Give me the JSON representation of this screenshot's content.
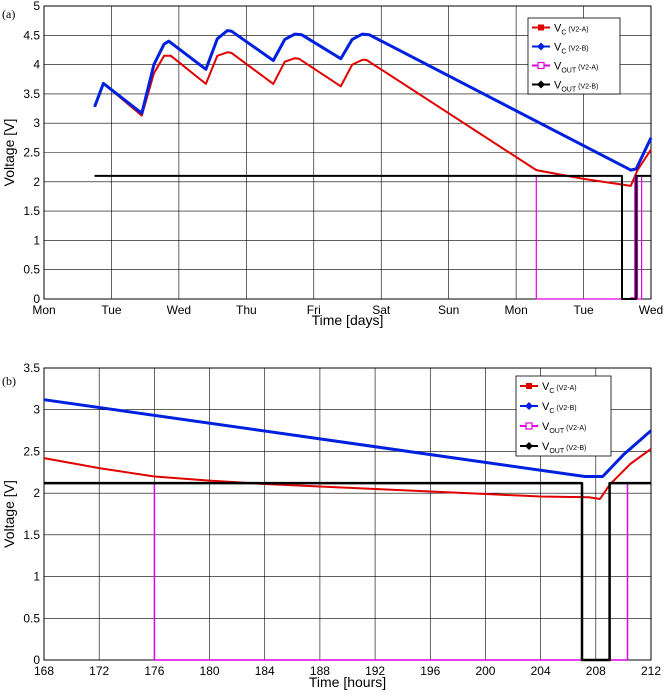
{
  "chart_data": [
    {
      "type": "line",
      "panel_label": "(a)",
      "xlabel": "Time [days]",
      "ylabel": "Voltage [V]",
      "xlim": [
        0,
        9
      ],
      "ylim": [
        0,
        5
      ],
      "x_ticks": [
        0,
        1,
        2,
        3,
        4,
        5,
        6,
        7,
        8,
        9
      ],
      "x_tick_labels": [
        "Mon",
        "Tue",
        "Wed",
        "Thu",
        "Fri",
        "Sat",
        "Sun",
        "Mon",
        "Tue",
        "Wed"
      ],
      "y_ticks": [
        0,
        0.5,
        1,
        1.5,
        2,
        2.5,
        3,
        3.5,
        4,
        4.5,
        5
      ],
      "y_tick_labels": [
        "0",
        "0.5",
        "1",
        "1.5",
        "2",
        "2.5",
        "3",
        "3.5",
        "4",
        "4.5",
        "5"
      ],
      "grid": true,
      "legend_position": "top-right",
      "legend": [
        {
          "main": "V",
          "sub": "C",
          "tag": "(V2-A)",
          "color": "#e00000",
          "marker": "square"
        },
        {
          "main": "V",
          "sub": "C",
          "tag": "(V2-B)",
          "color": "#0020e0",
          "marker": "diamond"
        },
        {
          "main": "V",
          "sub": "OUT",
          "tag": "(V2-A)",
          "color": "#e000e0",
          "marker": "open-square"
        },
        {
          "main": "V",
          "sub": "OUT",
          "tag": "(V2-B)",
          "color": "#000000",
          "marker": "diamond"
        }
      ],
      "series": [
        {
          "name": "VC (V2-A)",
          "color": "#e00000",
          "width": 2,
          "points": [
            [
              0.75,
              3.28
            ],
            [
              0.88,
              3.68
            ],
            [
              1.45,
              3.13
            ],
            [
              1.63,
              3.85
            ],
            [
              1.78,
              4.15
            ],
            [
              1.88,
              4.15
            ],
            [
              2.4,
              3.67
            ],
            [
              2.57,
              4.15
            ],
            [
              2.72,
              4.21
            ],
            [
              2.78,
              4.2
            ],
            [
              3.4,
              3.67
            ],
            [
              3.57,
              4.05
            ],
            [
              3.72,
              4.11
            ],
            [
              3.78,
              4.1
            ],
            [
              4.4,
              3.63
            ],
            [
              4.57,
              4.0
            ],
            [
              4.72,
              4.08
            ],
            [
              4.78,
              4.08
            ],
            [
              7.3,
              2.2
            ],
            [
              8.0,
              2.05
            ],
            [
              8.7,
              1.93
            ],
            [
              8.8,
              2.2
            ],
            [
              9.0,
              2.55
            ]
          ]
        },
        {
          "name": "VC (V2-B)",
          "color": "#0020e0",
          "width": 3,
          "points": [
            [
              0.75,
              3.28
            ],
            [
              0.88,
              3.68
            ],
            [
              1.45,
              3.17
            ],
            [
              1.63,
              4.0
            ],
            [
              1.78,
              4.35
            ],
            [
              1.85,
              4.4
            ],
            [
              2.4,
              3.92
            ],
            [
              2.57,
              4.44
            ],
            [
              2.72,
              4.58
            ],
            [
              2.78,
              4.57
            ],
            [
              3.4,
              4.07
            ],
            [
              3.57,
              4.43
            ],
            [
              3.72,
              4.52
            ],
            [
              3.82,
              4.51
            ],
            [
              4.4,
              4.1
            ],
            [
              4.57,
              4.43
            ],
            [
              4.72,
              4.52
            ],
            [
              4.82,
              4.51
            ],
            [
              8.7,
              2.2
            ],
            [
              8.78,
              2.22
            ],
            [
              9.0,
              2.75
            ]
          ]
        },
        {
          "name": "VOUT (V2-A)",
          "color": "#e000e0",
          "width": 1.2,
          "points": [
            [
              0.75,
              2.1
            ],
            [
              7.3,
              2.1
            ],
            [
              7.3,
              0
            ],
            [
              8.7,
              0
            ],
            [
              8.7,
              0.02
            ],
            [
              8.76,
              0.02
            ],
            [
              8.76,
              2.1
            ],
            [
              8.8,
              2.1
            ],
            [
              8.8,
              0
            ],
            [
              8.86,
              0
            ],
            [
              8.86,
              2.1
            ],
            [
              9.0,
              2.1
            ]
          ]
        },
        {
          "name": "VOUT (V2-B)",
          "color": "#000000",
          "width": 2,
          "points": [
            [
              0.75,
              2.1
            ],
            [
              8.57,
              2.1
            ],
            [
              8.57,
              0
            ],
            [
              8.78,
              0
            ],
            [
              8.78,
              2.1
            ],
            [
              9.0,
              2.1
            ]
          ]
        }
      ]
    },
    {
      "type": "line",
      "panel_label": "(b)",
      "xlabel": "Time [hours]",
      "ylabel": "Voltage [V]",
      "xlim": [
        168,
        212
      ],
      "ylim": [
        0,
        3.5
      ],
      "x_ticks": [
        168,
        172,
        176,
        180,
        184,
        188,
        192,
        196,
        200,
        204,
        208,
        212
      ],
      "x_tick_labels": [
        "168",
        "172",
        "176",
        "180",
        "184",
        "188",
        "192",
        "196",
        "200",
        "204",
        "208",
        "212"
      ],
      "y_ticks": [
        0,
        0.5,
        1,
        1.5,
        2,
        2.5,
        3,
        3.5
      ],
      "y_tick_labels": [
        "0",
        "0.5",
        "1",
        "1.5",
        "2",
        "2.5",
        "3",
        "3.5"
      ],
      "grid": true,
      "legend_position": "top-right",
      "legend": [
        {
          "main": "V",
          "sub": "C",
          "tag": "(V2-A)",
          "color": "#e00000",
          "marker": "square"
        },
        {
          "main": "V",
          "sub": "C",
          "tag": "(V2-B)",
          "color": "#0020e0",
          "marker": "diamond"
        },
        {
          "main": "V",
          "sub": "OUT",
          "tag": "(V2-A)",
          "color": "#e000e0",
          "marker": "open-square"
        },
        {
          "main": "V",
          "sub": "OUT",
          "tag": "(V2-B)",
          "color": "#000000",
          "marker": "diamond"
        }
      ],
      "series": [
        {
          "name": "VC (V2-A)",
          "color": "#e00000",
          "width": 2,
          "points": [
            [
              168,
              2.42
            ],
            [
              172,
              2.3
            ],
            [
              176,
              2.2
            ],
            [
              180,
              2.15
            ],
            [
              184,
              2.11
            ],
            [
              188,
              2.08
            ],
            [
              192,
              2.05
            ],
            [
              196,
              2.02
            ],
            [
              200,
              1.99
            ],
            [
              204,
              1.96
            ],
            [
              207.5,
              1.95
            ],
            [
              208.3,
              1.93
            ],
            [
              209,
              2.1
            ],
            [
              210.5,
              2.35
            ],
            [
              212,
              2.53
            ]
          ]
        },
        {
          "name": "VC (V2-B)",
          "color": "#0020e0",
          "width": 3,
          "points": [
            [
              168,
              3.12
            ],
            [
              207.2,
              2.2
            ],
            [
              208.5,
              2.2
            ],
            [
              210,
              2.46
            ],
            [
              212,
              2.75
            ]
          ]
        },
        {
          "name": "VOUT (V2-A)",
          "color": "#e000e0",
          "width": 1.5,
          "points": [
            [
              168,
              2.12
            ],
            [
              176,
              2.12
            ],
            [
              176,
              0
            ],
            [
              210.3,
              0
            ],
            [
              210.3,
              2.12
            ],
            [
              212,
              2.12
            ]
          ]
        },
        {
          "name": "VOUT (V2-B)",
          "color": "#000000",
          "width": 2.5,
          "points": [
            [
              168,
              2.12
            ],
            [
              207,
              2.12
            ],
            [
              207,
              0
            ],
            [
              209,
              0
            ],
            [
              209,
              2.12
            ],
            [
              212,
              2.12
            ]
          ]
        }
      ]
    }
  ]
}
